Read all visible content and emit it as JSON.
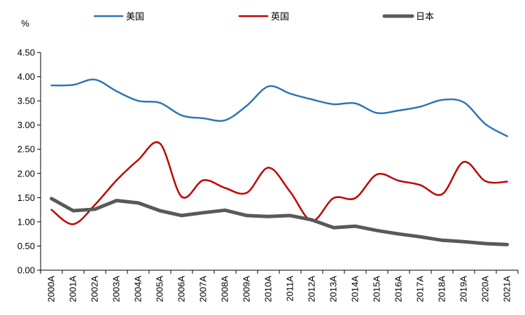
{
  "chart_data": {
    "type": "line",
    "title": "",
    "xlabel": "",
    "ylabel": "%",
    "ylim": [
      0,
      4.5
    ],
    "yticks": [
      "0.00",
      "0.50",
      "1.00",
      "1.50",
      "2.00",
      "2.50",
      "3.00",
      "3.50",
      "4.00",
      "4.50"
    ],
    "categories": [
      "2000A",
      "2001A",
      "2002A",
      "2003A",
      "2004A",
      "2005A",
      "2006A",
      "2007A",
      "2008A",
      "2009A",
      "2010A",
      "2011A",
      "2012A",
      "2013A",
      "2014A",
      "2015A",
      "2016A",
      "2017A",
      "2018A",
      "2019A",
      "2020A",
      "2021A"
    ],
    "legend_position": "top",
    "series": [
      {
        "name": "美国",
        "color": "#2E75B6",
        "values": [
          3.82,
          3.83,
          3.94,
          3.7,
          3.5,
          3.46,
          3.2,
          3.14,
          3.1,
          3.4,
          3.8,
          3.65,
          3.53,
          3.43,
          3.45,
          3.25,
          3.3,
          3.38,
          3.52,
          3.47,
          3.02,
          2.77
        ]
      },
      {
        "name": "英国",
        "color": "#C00000",
        "values": [
          1.25,
          0.95,
          1.35,
          1.86,
          2.28,
          2.62,
          1.52,
          1.86,
          1.7,
          1.6,
          2.12,
          1.62,
          1.02,
          1.49,
          1.49,
          1.98,
          1.85,
          1.76,
          1.57,
          2.24,
          1.84,
          1.83
        ]
      },
      {
        "name": "日本",
        "color": "#595959",
        "values": [
          1.48,
          1.23,
          1.26,
          1.44,
          1.39,
          1.23,
          1.13,
          1.19,
          1.24,
          1.13,
          1.11,
          1.13,
          1.04,
          0.88,
          0.91,
          0.82,
          0.75,
          0.69,
          0.62,
          0.59,
          0.55,
          0.53
        ]
      }
    ]
  }
}
